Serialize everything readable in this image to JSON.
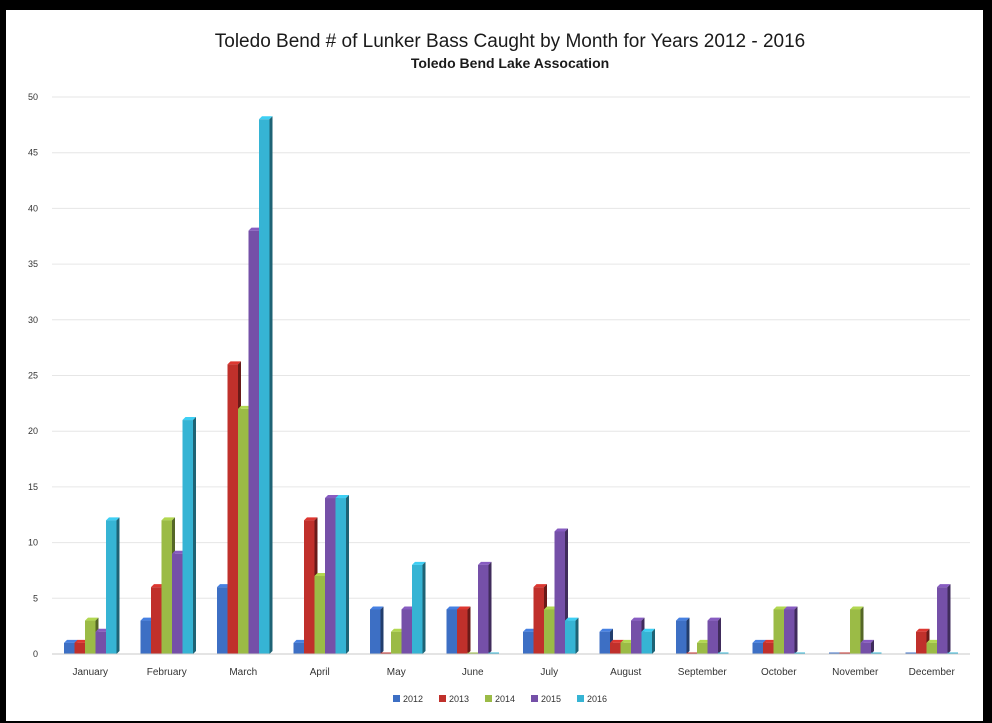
{
  "chart_data": {
    "type": "bar",
    "title": "Toledo Bend # of Lunker Bass Caught by Month for Years 2012 - 2016",
    "subtitle": "Toledo Bend Lake Assocation",
    "xlabel": "",
    "ylabel": "",
    "ylim": [
      0,
      50
    ],
    "yticks": [
      0,
      5,
      10,
      15,
      20,
      25,
      30,
      35,
      40,
      45,
      50
    ],
    "grid": true,
    "legend_position": "bottom",
    "categories": [
      "January",
      "February",
      "March",
      "April",
      "May",
      "June",
      "July",
      "August",
      "September",
      "October",
      "November",
      "December"
    ],
    "series": [
      {
        "name": "2012",
        "color": "#3d6fc4",
        "values": [
          1,
          3,
          6,
          1,
          4,
          4,
          2,
          2,
          3,
          1,
          0,
          0
        ]
      },
      {
        "name": "2013",
        "color": "#c0302b",
        "values": [
          1,
          6,
          26,
          12,
          0,
          4,
          6,
          1,
          0,
          1,
          0,
          2
        ]
      },
      {
        "name": "2014",
        "color": "#9bbb46",
        "values": [
          3,
          12,
          22,
          7,
          2,
          0,
          4,
          1,
          1,
          4,
          4,
          1
        ]
      },
      {
        "name": "2015",
        "color": "#7550a8",
        "values": [
          2,
          9,
          38,
          14,
          4,
          8,
          11,
          3,
          3,
          4,
          1,
          6
        ]
      },
      {
        "name": "2016",
        "color": "#36b4d4",
        "values": [
          12,
          21,
          48,
          14,
          8,
          0,
          3,
          2,
          0,
          0,
          0,
          0
        ]
      }
    ]
  }
}
